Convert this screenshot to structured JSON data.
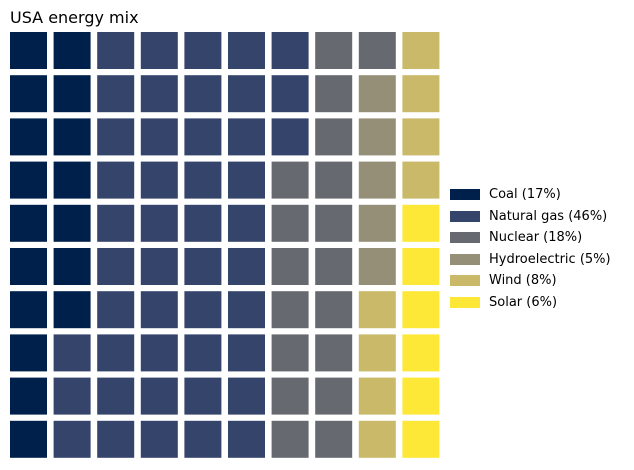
{
  "chart_data": {
    "type": "waffle",
    "title": "USA energy mix",
    "grid": {
      "rows": 10,
      "cols": 10,
      "fill_order": "column-major-top-to-bottom"
    },
    "series": [
      {
        "name": "Coal (17%)",
        "value": 17,
        "color": "#00204c"
      },
      {
        "name": "Natural gas (46%)",
        "value": 46,
        "color": "#34446b"
      },
      {
        "name": "Nuclear (18%)",
        "value": 18,
        "color": "#666970"
      },
      {
        "name": "Hydroelectric (5%)",
        "value": 5,
        "color": "#958f78"
      },
      {
        "name": "Wind (8%)",
        "value": 8,
        "color": "#c9b969"
      },
      {
        "name": "Solar (6%)",
        "value": 6,
        "color": "#fde737"
      }
    ],
    "legend_position": "right"
  }
}
